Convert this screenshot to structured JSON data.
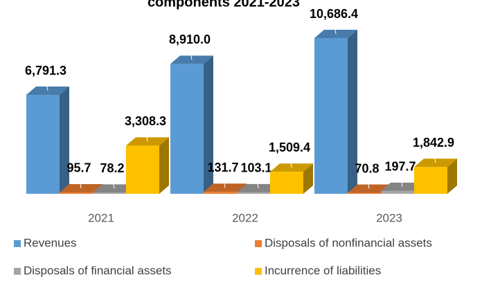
{
  "chart_data": {
    "type": "bar3d",
    "title": "components 2021-2023",
    "categories": [
      "2021",
      "2022",
      "2023"
    ],
    "series": [
      {
        "name": "Revenues",
        "color": "#5b9bd5",
        "values": [
          6791.3,
          8910.0,
          10686.4
        ],
        "value_labels": [
          "6,791.3",
          "8,910.0",
          "10,686.4"
        ]
      },
      {
        "name": "Disposals of nonfinancial assets",
        "color": "#ed7d31",
        "values": [
          95.7,
          131.7,
          70.8
        ],
        "value_labels": [
          "95.7",
          "131.7",
          "70.8"
        ]
      },
      {
        "name": "Disposals of financial assets",
        "color": "#a5a5a5",
        "values": [
          78.2,
          103.1,
          197.7
        ],
        "value_labels": [
          "78.2",
          "103.1",
          "197.7"
        ]
      },
      {
        "name": "Incurrence of liabilities",
        "color": "#ffc000",
        "values": [
          3308.3,
          1509.4,
          1842.9
        ],
        "value_labels": [
          "3,308.3",
          "1,509.4",
          "1,842.9"
        ]
      }
    ],
    "legend": "bottom"
  }
}
